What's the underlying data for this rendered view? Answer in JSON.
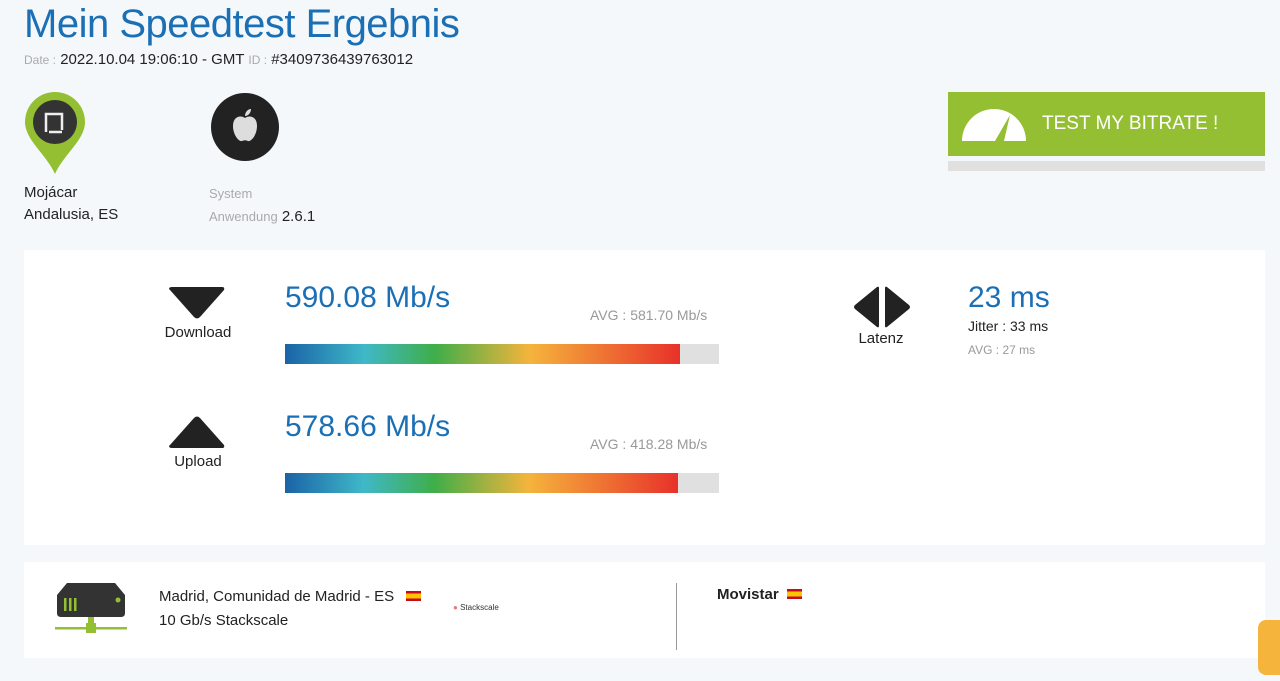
{
  "title": "Mein Speedtest Ergebnis",
  "meta": {
    "date_label": "Date :",
    "date": "2022.10.04 19:06:10 - GMT",
    "id_label": "ID :",
    "id": "#3409736439763012"
  },
  "location": {
    "city": "Mojácar",
    "region": "Andalusia, ES"
  },
  "system": {
    "label": "System",
    "app_label": "Anwendung",
    "app_version": "2.6.1"
  },
  "cta": {
    "label": "TEST MY BITRATE !",
    "color": "#95bf32"
  },
  "download": {
    "label": "Download",
    "value": "590.08 Mb/s",
    "avg": "AVG : 581.70 Mb/s",
    "fraction": 0.91
  },
  "upload": {
    "label": "Upload",
    "value": "578.66 Mb/s",
    "avg": "AVG : 418.28 Mb/s",
    "fraction": 0.905
  },
  "latency": {
    "label": "Latenz",
    "value": "23 ms",
    "jitter": "Jitter : 33 ms",
    "avg": "AVG : 27 ms"
  },
  "server": {
    "location": "Madrid, Comunidad de Madrid - ES",
    "desc": "10 Gb/s Stackscale",
    "logo": "Stackscale",
    "isp": "Movistar"
  }
}
